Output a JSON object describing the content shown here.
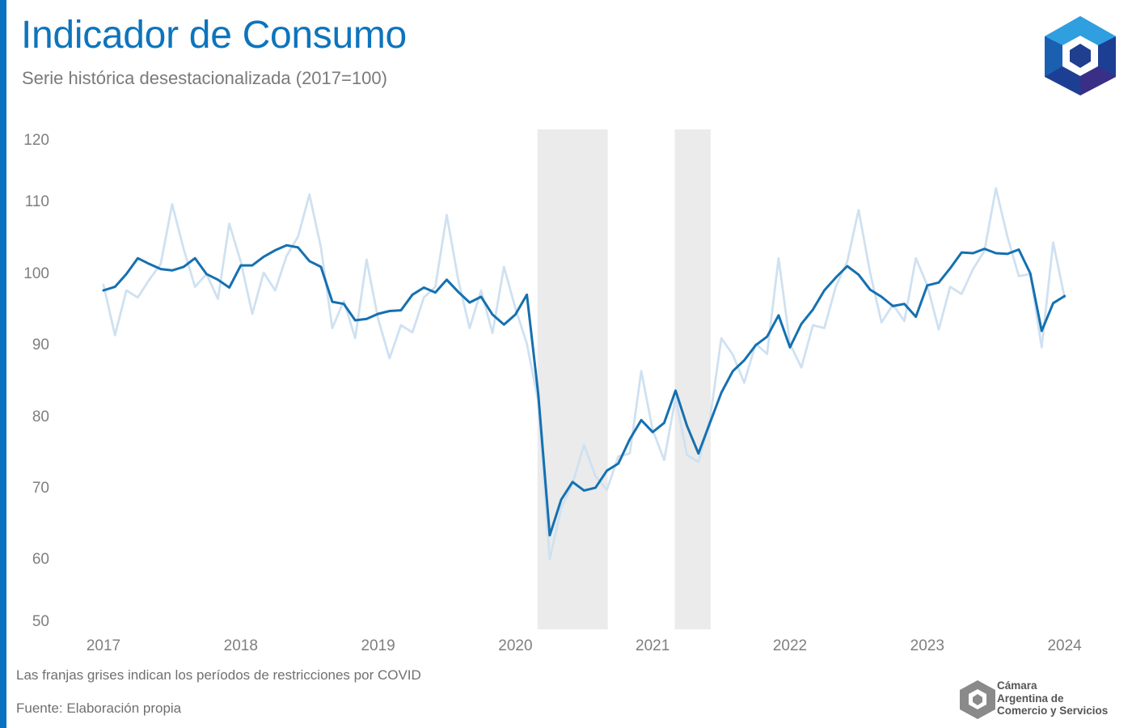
{
  "title": "Indicador de Consumo",
  "subtitle": "Serie histórica desestacionalizada (2017=100)",
  "note": "Las franjas grises indican los períodos de restricciones por COVID",
  "source": "Fuente: Elaboración propia",
  "organization": {
    "line1": "Cámara",
    "line2": "Argentina de",
    "line3": "Comercio y Servicios"
  },
  "colors": {
    "accent": "#0a72c0",
    "title": "#0e74bc",
    "main_series": "#1570b0",
    "raw_series": "#cfe1f1",
    "covid_band": "#ebebeb",
    "axis_text": "#7f7f7f"
  },
  "icons": {
    "logo": "cac-hexagon-logo"
  },
  "chart_data": {
    "type": "line",
    "title": "Indicador de Consumo",
    "subtitle": "Serie histórica desestacionalizada (2017=100)",
    "xlabel": "",
    "ylabel": "",
    "x_start": "2017-01",
    "x_ticks": [
      "2017",
      "2018",
      "2019",
      "2020",
      "2021",
      "2022",
      "2023",
      "2024"
    ],
    "y_ticks": [
      50,
      60,
      70,
      80,
      90,
      100,
      110,
      120
    ],
    "ylim": [
      50,
      120
    ],
    "grid": false,
    "legend": "none",
    "shaded_periods": [
      {
        "start": "2020-03",
        "end": "2020-09"
      },
      {
        "start": "2021-03",
        "end": "2021-06"
      }
    ],
    "series": [
      {
        "values": [
          98.3,
          91.2,
          97.5,
          96.5,
          99.0,
          101.2,
          109.5,
          103.3,
          98.0,
          99.8,
          96.3,
          106.8,
          101.5,
          94.2,
          100.0,
          97.5,
          102.3,
          105.0,
          111.0,
          103.5,
          92.2,
          96.0,
          90.8,
          101.8,
          93.5,
          88.0,
          92.6,
          91.6,
          96.5,
          98.0,
          108.0,
          99.0,
          92.2,
          97.5,
          91.5,
          100.8,
          95.0,
          90.0,
          82.0,
          59.8,
          67.0,
          70.5,
          75.9,
          71.5,
          69.6,
          74.3,
          74.7,
          86.2,
          78.0,
          73.8,
          82.5,
          74.5,
          73.5,
          79.5,
          90.8,
          88.5,
          84.6,
          90.0,
          88.6,
          102.0,
          90.0,
          86.7,
          92.6,
          92.2,
          98.0,
          101.5,
          108.7,
          100.0,
          93.0,
          95.5,
          93.2,
          102.0,
          98.2,
          92.0,
          98.0,
          97.0,
          100.5,
          103.0,
          112.0,
          105.0,
          99.5,
          99.8,
          89.5,
          104.2,
          96.5
        ]
      },
      {
        "values": [
          97.5,
          98.0,
          99.8,
          102.0,
          101.2,
          100.5,
          100.3,
          100.8,
          102.0,
          99.8,
          99.0,
          97.9,
          101.0,
          101.0,
          102.2,
          103.1,
          103.8,
          103.5,
          101.6,
          100.8,
          95.9,
          95.6,
          93.3,
          93.5,
          94.2,
          94.6,
          94.7,
          96.9,
          97.9,
          97.2,
          99.0,
          97.3,
          95.8,
          96.6,
          94.1,
          92.7,
          94.1,
          96.9,
          83.0,
          63.2,
          68.2,
          70.7,
          69.5,
          69.9,
          72.3,
          73.3,
          76.7,
          79.4,
          77.7,
          79.0,
          83.5,
          78.6,
          74.7,
          79.0,
          83.2,
          86.2,
          87.7,
          89.8,
          91.0,
          94.0,
          89.5,
          92.8,
          94.8,
          97.5,
          99.3,
          100.9,
          99.7,
          97.6,
          96.6,
          95.3,
          95.6,
          93.8,
          98.2,
          98.6,
          100.6,
          102.8,
          102.7,
          103.3,
          102.7,
          102.6,
          103.2,
          99.9,
          91.8,
          95.7,
          96.7
        ]
      }
    ]
  }
}
